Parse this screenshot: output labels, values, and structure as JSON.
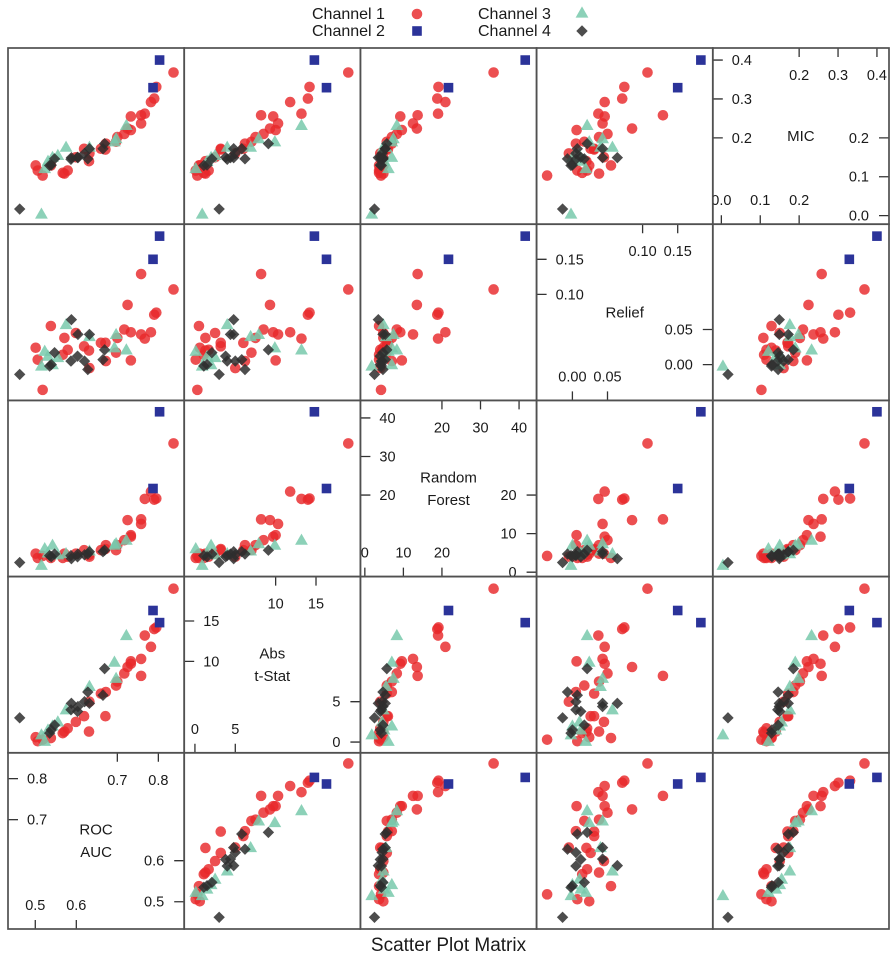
{
  "chart_data": {
    "type": "scatter",
    "subtype": "scatter-plot-matrix",
    "title": "Scatter Plot Matrix",
    "legend_position": "top",
    "grid": false,
    "variables": [
      {
        "label_lines": [
          "ROC",
          "AUC"
        ],
        "range": [
          0.4335,
          0.863
        ],
        "ticks_low": [
          {
            "value": 0.5,
            "label": "0.5"
          },
          {
            "value": 0.6,
            "label": "0.6"
          }
        ],
        "ticks_high": [
          {
            "value": 0.7,
            "label": "0.7"
          },
          {
            "value": 0.8,
            "label": "0.8"
          }
        ]
      },
      {
        "label_lines": [
          "Abs",
          "t-Stat"
        ],
        "range": [
          -1.33,
          20.5
        ],
        "ticks_low": [
          {
            "value": 0,
            "label": "0"
          },
          {
            "value": 5,
            "label": "5"
          }
        ],
        "ticks_high": [
          {
            "value": 10,
            "label": "10"
          },
          {
            "value": 15,
            "label": "15"
          }
        ]
      },
      {
        "label_lines": [
          "Random",
          "Forest"
        ],
        "range": [
          -1.15,
          44.55
        ],
        "ticks_low": [
          {
            "value": 0,
            "label": "0"
          },
          {
            "value": 10,
            "label": "10"
          },
          {
            "value": 20,
            "label": "20"
          }
        ],
        "ticks_high": [
          {
            "value": 20,
            "label": "20"
          },
          {
            "value": 30,
            "label": "30"
          },
          {
            "value": 40,
            "label": "40"
          }
        ]
      },
      {
        "label_lines": [
          "Relief"
        ],
        "range": [
          -0.051,
          0.2
        ],
        "ticks_low": [
          {
            "value": 0.0,
            "label": "0.00"
          },
          {
            "value": 0.05,
            "label": "0.05"
          }
        ],
        "ticks_high": [
          {
            "value": 0.1,
            "label": "0.10"
          },
          {
            "value": 0.15,
            "label": "0.15"
          }
        ]
      },
      {
        "label_lines": [
          "MIC"
        ],
        "range": [
          -0.022,
          0.431
        ],
        "ticks_low": [
          {
            "value": 0.0,
            "label": "0.0"
          },
          {
            "value": 0.1,
            "label": "0.1"
          },
          {
            "value": 0.2,
            "label": "0.2"
          }
        ],
        "ticks_high": [
          {
            "value": 0.2,
            "label": "0.2"
          },
          {
            "value": 0.3,
            "label": "0.3"
          },
          {
            "value": 0.4,
            "label": "0.4"
          }
        ]
      }
    ],
    "point_fields": [
      "ROC AUC",
      "Abs t-Stat",
      "Random Forest",
      "Relief",
      "MIC"
    ],
    "series": [
      {
        "name": "Channel 1",
        "marker": "circle",
        "color": "#E8282B",
        "points": [
          [
            0.837,
            19.0,
            33.4,
            0.107,
            0.368
          ],
          [
            0.795,
            14.2,
            19.1,
            0.074,
            0.331
          ],
          [
            0.79,
            14.0,
            18.8,
            0.071,
            0.301
          ],
          [
            0.782,
            11.8,
            20.9,
            0.046,
            0.292
          ],
          [
            0.767,
            13.2,
            19.0,
            0.037,
            0.262
          ],
          [
            0.758,
            8.2,
            13.7,
            0.129,
            0.258
          ],
          [
            0.758,
            10.3,
            12.5,
            0.043,
            0.237
          ],
          [
            0.733,
            9.7,
            9.2,
            0.046,
            0.255
          ],
          [
            0.725,
            9.3,
            13.5,
            0.085,
            0.224
          ],
          [
            0.717,
            8.5,
            8.3,
            0.05,
            0.21
          ],
          [
            0.733,
            10.0,
            9.6,
            0.006,
            0.22
          ],
          [
            0.7,
            7.5,
            7.0,
            0.038,
            0.202
          ],
          [
            0.697,
            7.0,
            5.7,
            0.017,
            0.19
          ],
          [
            0.672,
            6.2,
            7.0,
            0.005,
            0.185
          ],
          [
            0.66,
            6.0,
            5.7,
            0.031,
            0.172
          ],
          [
            0.671,
            3.2,
            6.0,
            0.031,
            0.17
          ],
          [
            0.632,
            5.0,
            4.0,
            -0.005,
            0.16
          ],
          [
            0.631,
            1.3,
            4.5,
            0.02,
            0.14
          ],
          [
            0.619,
            3.2,
            5.7,
            0.026,
            0.172
          ],
          [
            0.599,
            2.5,
            4.8,
            0.045,
            0.15
          ],
          [
            0.579,
            1.7,
            4.0,
            0.021,
            0.116
          ],
          [
            0.571,
            1.3,
            4.8,
            0.038,
            0.108
          ],
          [
            0.567,
            1.1,
            3.7,
            0.014,
            0.11
          ],
          [
            0.538,
            0.5,
            3.7,
            0.055,
            0.129
          ],
          [
            0.518,
            0.3,
            4.2,
            -0.036,
            0.103
          ],
          [
            0.506,
            0.1,
            3.7,
            0.007,
            0.116
          ],
          [
            0.501,
            0.6,
            4.8,
            0.024,
            0.129
          ]
        ]
      },
      {
        "name": "Channel 2",
        "marker": "square",
        "color": "#2B3399",
        "points": [
          [
            0.803,
            14.8,
            41.6,
            0.183,
            0.4
          ],
          [
            0.787,
            16.3,
            21.7,
            0.15,
            0.329
          ]
        ]
      },
      {
        "name": "Channel 3",
        "marker": "triangle",
        "color": "#78C9AC",
        "points": [
          [
            0.722,
            13.2,
            8.3,
            0.021,
            0.232
          ],
          [
            0.697,
            7.9,
            7.4,
            0.043,
            0.198
          ],
          [
            0.693,
            9.9,
            7.0,
            0.024,
            0.19
          ],
          [
            0.632,
            6.9,
            5.5,
            0.04,
            0.176
          ],
          [
            0.575,
            4.0,
            4.8,
            0.057,
            0.176
          ],
          [
            0.555,
            2.5,
            4.5,
            0.01,
            0.155
          ],
          [
            0.542,
            2.0,
            7.0,
            0.0,
            0.15
          ],
          [
            0.531,
            1.5,
            5.0,
            0.012,
            0.14
          ],
          [
            0.523,
            0.1,
            6.1,
            0.019,
            0.121
          ],
          [
            0.515,
            0.9,
            1.8,
            -0.002,
            0.004
          ]
        ]
      },
      {
        "name": "Channel 4",
        "marker": "diamond",
        "color": "#2E2E2E",
        "points": [
          [
            0.669,
            9.1,
            5.7,
            0.021,
            0.185
          ],
          [
            0.665,
            5.8,
            5.3,
            0.007,
            0.172
          ],
          [
            0.632,
            4.8,
            5.3,
            0.043,
            0.172
          ],
          [
            0.628,
            6.2,
            4.7,
            -0.007,
            0.146
          ],
          [
            0.62,
            5.0,
            4.5,
            0.005,
            0.16
          ],
          [
            0.604,
            4.4,
            4.7,
            0.043,
            0.149
          ],
          [
            0.603,
            3.8,
            4.0,
            0.012,
            0.15
          ],
          [
            0.588,
            4.8,
            3.5,
            0.064,
            0.149
          ],
          [
            0.587,
            4.0,
            4.3,
            0.005,
            0.145
          ],
          [
            0.547,
            2.1,
            4.7,
            0.017,
            0.146
          ],
          [
            0.539,
            1.5,
            4.0,
            0.0,
            0.13
          ],
          [
            0.535,
            1.1,
            4.3,
            -0.002,
            0.129
          ],
          [
            0.462,
            3.0,
            2.5,
            -0.014,
            0.017
          ]
        ]
      }
    ]
  }
}
